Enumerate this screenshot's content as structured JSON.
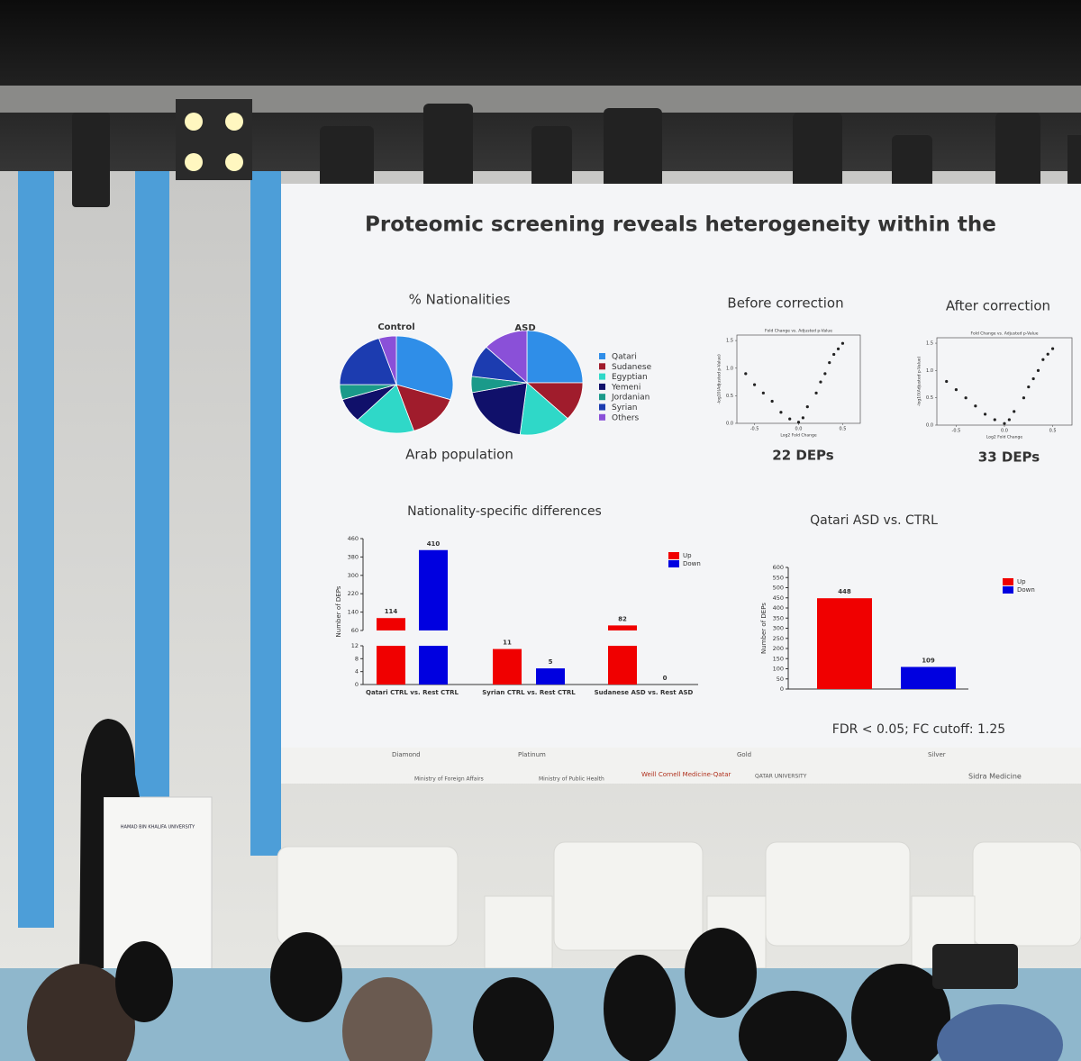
{
  "slide": {
    "title": "Proteomic screening reveals heterogeneity within the",
    "footnote": "FDR < 0.05; FC cutoff: 1.25"
  },
  "chart_data": [
    {
      "type": "pie",
      "title": "% Nationalities",
      "xlabel": "Arab population",
      "categories": [
        "Qatari",
        "Sudanese",
        "Egyptian",
        "Yemeni",
        "Jordanian",
        "Syrian",
        "Others"
      ],
      "colors": [
        "#2f8ee8",
        "#a01c2c",
        "#2fd8c8",
        "#10106a",
        "#1a9a8a",
        "#1c3cb0",
        "#8a50d8"
      ],
      "series": [
        {
          "name": "Control",
          "values": [
            30,
            15,
            17,
            8,
            5,
            20,
            5
          ]
        },
        {
          "name": "ASD",
          "values": [
            25,
            12,
            15,
            20,
            5,
            10,
            13
          ]
        }
      ]
    },
    {
      "type": "scatter",
      "title": "Before correction",
      "subtitle": "Fold Change vs. Adjusted p-Value",
      "xlabel": "Log2 Fold Change",
      "ylabel": "-log10(Adjusted p-Value)",
      "annotation": "22 DEPs",
      "x": [
        -0.6,
        -0.5,
        -0.4,
        -0.3,
        -0.2,
        -0.1,
        0,
        0.05,
        0.1,
        0.2,
        0.25,
        0.3,
        0.35,
        0.4,
        0.45,
        0.5
      ],
      "y": [
        0.9,
        0.7,
        0.55,
        0.4,
        0.2,
        0.08,
        0.02,
        0.1,
        0.3,
        0.55,
        0.75,
        0.9,
        1.1,
        1.25,
        1.35,
        1.45
      ],
      "xlim": [
        -0.7,
        0.7
      ],
      "ylim": [
        0,
        1.6
      ],
      "xticks": [
        -0.5,
        {
          "value": 0,
          "label": "0.0"
        },
        0.5
      ],
      "yticks": [
        {
          "value": 0,
          "label": "0.0"
        },
        0.5,
        {
          "value": 1,
          "label": "1.0"
        },
        1.5
      ]
    },
    {
      "type": "scatter",
      "title": "After correction",
      "subtitle": "Fold Change vs. Adjusted p-Value",
      "xlabel": "Log2 Fold Change",
      "ylabel": "-log10(Adjusted p-Value)",
      "annotation": "33 DEPs",
      "x": [
        -0.6,
        -0.5,
        -0.4,
        -0.3,
        -0.2,
        -0.1,
        0,
        0.05,
        0.1,
        0.2,
        0.25,
        0.3,
        0.35,
        0.4,
        0.45,
        0.5
      ],
      "y": [
        0.8,
        0.65,
        0.5,
        0.35,
        0.2,
        0.1,
        0.03,
        0.1,
        0.25,
        0.5,
        0.7,
        0.85,
        1.0,
        1.2,
        1.3,
        1.4
      ],
      "xlim": [
        -0.7,
        0.7
      ],
      "ylim": [
        0,
        1.6
      ],
      "xticks": [
        -0.5,
        {
          "value": 0,
          "label": "0.0"
        },
        0.5
      ],
      "yticks": [
        {
          "value": 0,
          "label": "0.0"
        },
        0.5,
        {
          "value": 1,
          "label": "1.0"
        },
        1.5
      ]
    },
    {
      "type": "bar",
      "title": "Nationality-specific differences",
      "ylabel": "Number of DEPs",
      "categories": [
        "Qatari CTRL vs. Rest CTRL",
        "Syrian CTRL vs. Rest CTRL",
        "Sudanese ASD vs. Rest ASD"
      ],
      "series": [
        {
          "name": "Up",
          "color": "#f00000",
          "values": [
            114,
            11,
            82
          ]
        },
        {
          "name": "Down",
          "color": "#0000e0",
          "values": [
            410,
            5,
            0
          ]
        }
      ],
      "ylim": [
        0,
        460
      ],
      "axis_break": [
        12,
        60
      ],
      "yticks": [
        0,
        4,
        8,
        12,
        60,
        140,
        220,
        300,
        380,
        460
      ]
    },
    {
      "type": "bar",
      "title": "Qatari ASD vs. CTRL",
      "ylabel": "Number of DEPs",
      "categories": [
        null
      ],
      "series": [
        {
          "name": "Up",
          "color": "#f00000",
          "values": [
            448
          ]
        },
        {
          "name": "Down",
          "color": "#0000e0",
          "values": [
            109
          ]
        }
      ],
      "ylim": [
        0,
        600
      ],
      "yticks": [
        0,
        50,
        100,
        150,
        200,
        250,
        300,
        350,
        400,
        450,
        500,
        550,
        600
      ]
    }
  ],
  "stage": {
    "tiers": [
      "Diamond",
      "Platinum",
      "Gold",
      "Silver"
    ],
    "sponsors": [
      "Ministry of Foreign Affairs",
      "Ministry of Public Health",
      "Weill Cornell Medicine-Qatar",
      "QATAR UNIVERSITY",
      "Sidra Medicine"
    ],
    "podium": "HAMAD BIN KHALIFA UNIVERSITY"
  }
}
